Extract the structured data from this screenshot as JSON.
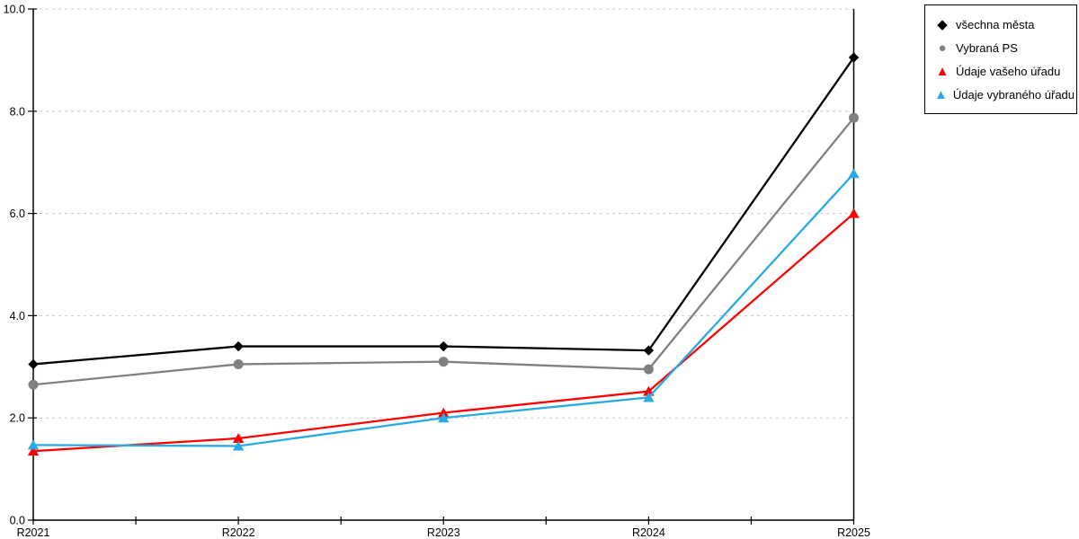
{
  "page": {
    "background": "#ffffff",
    "axis_color": "#000000",
    "grid_color": "#c8c8c8",
    "text_color": "#000000"
  },
  "chart_data": {
    "type": "line",
    "title": "",
    "xlabel": "",
    "ylabel": "",
    "categories": [
      "R2021",
      "R2022",
      "R2023",
      "R2024",
      "R2025"
    ],
    "series": [
      {
        "name": "všechna města",
        "color": "#000000",
        "marker": "diamond",
        "values": [
          3.05,
          3.4,
          3.4,
          3.32,
          9.05
        ]
      },
      {
        "name": "Vybraná PS",
        "color": "#808080",
        "marker": "circle",
        "values": [
          2.65,
          3.05,
          3.1,
          2.95,
          7.87
        ]
      },
      {
        "name": "Údaje vašeho úřadu",
        "color": "#ff0000",
        "marker": "triangle",
        "values": [
          1.35,
          1.6,
          2.1,
          2.52,
          6.0
        ]
      },
      {
        "name": "Údaje vybraného úřadu",
        "color": "#29abe2",
        "marker": "triangle",
        "values": [
          1.47,
          1.45,
          2.0,
          2.4,
          6.78
        ]
      }
    ],
    "ylim": [
      0,
      10
    ],
    "ytick_step": 2,
    "ytick_labels": [
      "0.0",
      "2.0",
      "4.0",
      "6.0",
      "8.0",
      "10.0"
    ],
    "grid": "horizontal-dashed",
    "x_minor_ticks": true,
    "legend_position": "outside-top-right"
  }
}
